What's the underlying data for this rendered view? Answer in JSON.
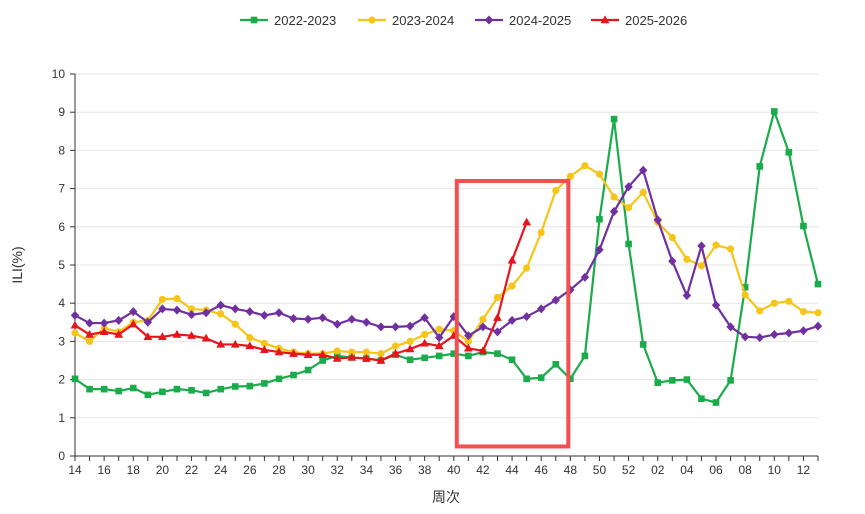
{
  "chart_data": {
    "type": "line",
    "title": "",
    "xlabel": "周次",
    "ylabel": "ILI(%)",
    "ylim": [
      0,
      10
    ],
    "yticks": [
      "0",
      "1",
      "2",
      "3",
      "4",
      "5",
      "6",
      "7",
      "8",
      "9",
      "10"
    ],
    "x_categories": [
      "14",
      "15",
      "16",
      "17",
      "18",
      "19",
      "20",
      "21",
      "22",
      "23",
      "24",
      "25",
      "26",
      "27",
      "28",
      "29",
      "30",
      "31",
      "32",
      "33",
      "34",
      "35",
      "36",
      "37",
      "38",
      "39",
      "40",
      "41",
      "42",
      "43",
      "44",
      "45",
      "46",
      "47",
      "48",
      "49",
      "50",
      "51",
      "52",
      "01",
      "02",
      "03",
      "04",
      "05",
      "06",
      "07",
      "08",
      "09",
      "10",
      "11",
      "12",
      "13"
    ],
    "x_tick_labels": [
      "14",
      "16",
      "18",
      "20",
      "22",
      "24",
      "26",
      "28",
      "30",
      "32",
      "34",
      "36",
      "38",
      "40",
      "42",
      "44",
      "46",
      "48",
      "50",
      "52",
      "02",
      "04",
      "06",
      "08",
      "10",
      "12"
    ],
    "legend_position": "top-center",
    "series": [
      {
        "name": "2022-2023",
        "color": "#1aab4a",
        "marker": "square",
        "values": [
          2.02,
          1.75,
          1.75,
          1.7,
          1.78,
          1.6,
          1.68,
          1.75,
          1.72,
          1.65,
          1.75,
          1.82,
          1.83,
          1.9,
          2.02,
          2.12,
          2.25,
          2.5,
          2.62,
          2.58,
          2.55,
          2.5,
          2.65,
          2.52,
          2.57,
          2.62,
          2.68,
          2.62,
          2.72,
          2.68,
          2.52,
          2.02,
          2.05,
          2.4,
          2.02,
          2.62,
          6.2,
          8.82,
          5.55,
          2.92,
          1.92,
          1.98,
          2.0,
          1.5,
          1.4,
          1.98,
          4.42,
          7.58,
          9.02,
          7.95,
          6.02,
          4.5
        ]
      },
      {
        "name": "2023-2024",
        "color": "#f5c518",
        "marker": "circle",
        "values": [
          3.22,
          3.0,
          3.35,
          3.25,
          3.5,
          3.55,
          4.1,
          4.12,
          3.85,
          3.82,
          3.72,
          3.45,
          3.1,
          2.95,
          2.82,
          2.72,
          2.68,
          2.68,
          2.75,
          2.72,
          2.72,
          2.68,
          2.88,
          3.0,
          3.18,
          3.32,
          3.28,
          3.0,
          3.58,
          4.15,
          4.45,
          4.92,
          5.85,
          6.95,
          7.32,
          7.6,
          7.38,
          6.78,
          6.5,
          6.9,
          6.12,
          5.72,
          5.15,
          4.98,
          5.52,
          5.42,
          4.22,
          3.8,
          4.0,
          4.05,
          3.78,
          3.75
        ]
      },
      {
        "name": "2024-2025",
        "color": "#7030a0",
        "marker": "diamond",
        "values": [
          3.68,
          3.48,
          3.48,
          3.55,
          3.78,
          3.5,
          3.85,
          3.82,
          3.7,
          3.75,
          3.95,
          3.85,
          3.78,
          3.68,
          3.75,
          3.6,
          3.58,
          3.62,
          3.45,
          3.58,
          3.5,
          3.38,
          3.38,
          3.4,
          3.62,
          3.1,
          3.65,
          3.15,
          3.38,
          3.25,
          3.55,
          3.65,
          3.85,
          4.08,
          4.35,
          4.68,
          5.4,
          6.4,
          7.05,
          7.48,
          6.18,
          5.1,
          4.2,
          5.5,
          3.95,
          3.38,
          3.12,
          3.1,
          3.18,
          3.22,
          3.28,
          3.4
        ]
      },
      {
        "name": "2025-2026",
        "color": "#e8141b",
        "marker": "triangle",
        "values": [
          3.42,
          3.18,
          3.25,
          3.18,
          3.45,
          3.12,
          3.12,
          3.18,
          3.15,
          3.08,
          2.92,
          2.92,
          2.88,
          2.78,
          2.72,
          2.68,
          2.65,
          2.65,
          2.55,
          2.58,
          2.55,
          2.5,
          2.68,
          2.8,
          2.95,
          2.88,
          3.15,
          2.82,
          2.75,
          3.62,
          5.12,
          6.12
        ]
      }
    ],
    "highlight_box": {
      "x_start": "40",
      "x_end": "48",
      "y_low": 0.25,
      "y_high": 7.2,
      "color": "#f05050"
    }
  }
}
